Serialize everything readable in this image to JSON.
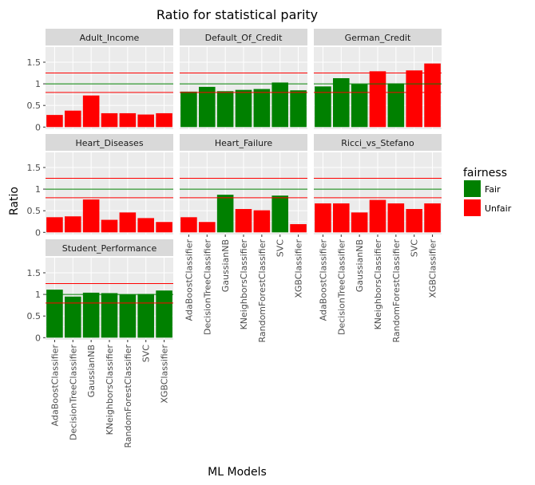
{
  "chart_data": {
    "type": "bar",
    "title": "Ratio for statistical parity",
    "xlabel": "ML Models",
    "ylabel": "Ratio",
    "ylim": [
      -0.05,
      1.85
    ],
    "yticks": [
      0,
      0.5,
      1,
      1.5
    ],
    "ytick_labels": [
      "0",
      "0.5",
      "1",
      "1.5"
    ],
    "grid": true,
    "facet_columns": 3,
    "reference_lines": [
      {
        "value": 1.0,
        "color": "#008000"
      },
      {
        "value": 0.8,
        "color": "#ff0000"
      },
      {
        "value": 1.25,
        "color": "#ff0000"
      }
    ],
    "categories": [
      "AdaBoostClassifier",
      "DecisionTreeClassifier",
      "GaussianNB",
      "KNeighborsClassifier",
      "RandomForestClassifier",
      "SVC",
      "XGBClassifier"
    ],
    "legend": {
      "title": "fairness",
      "position": "right",
      "entries": [
        {
          "label": "Fair",
          "color": "#008000"
        },
        {
          "label": "Unfair",
          "color": "#ff0000"
        }
      ]
    },
    "panels": [
      {
        "name": "Adult_Income",
        "values": [
          0.28,
          0.38,
          0.73,
          0.32,
          0.32,
          0.29,
          0.32
        ],
        "fairness": [
          "Unfair",
          "Unfair",
          "Unfair",
          "Unfair",
          "Unfair",
          "Unfair",
          "Unfair"
        ]
      },
      {
        "name": "Default_Of_Credit",
        "values": [
          0.82,
          0.93,
          0.83,
          0.86,
          0.88,
          1.03,
          0.85
        ],
        "fairness": [
          "Fair",
          "Fair",
          "Fair",
          "Fair",
          "Fair",
          "Fair",
          "Fair"
        ]
      },
      {
        "name": "German_Credit",
        "values": [
          0.94,
          1.13,
          0.99,
          1.29,
          1.01,
          1.31,
          1.47
        ],
        "fairness": [
          "Fair",
          "Fair",
          "Fair",
          "Unfair",
          "Fair",
          "Unfair",
          "Unfair"
        ]
      },
      {
        "name": "Heart_Diseases",
        "values": [
          0.35,
          0.37,
          0.76,
          0.29,
          0.46,
          0.33,
          0.24
        ],
        "fairness": [
          "Unfair",
          "Unfair",
          "Unfair",
          "Unfair",
          "Unfair",
          "Unfair",
          "Unfair"
        ]
      },
      {
        "name": "Heart_Failure",
        "values": [
          0.35,
          0.24,
          0.87,
          0.54,
          0.51,
          0.85,
          0.19
        ],
        "fairness": [
          "Unfair",
          "Unfair",
          "Fair",
          "Unfair",
          "Unfair",
          "Fair",
          "Unfair"
        ]
      },
      {
        "name": "Ricci_vs_Stefano",
        "values": [
          0.67,
          0.67,
          0.46,
          0.75,
          0.67,
          0.54,
          0.67
        ],
        "fairness": [
          "Unfair",
          "Unfair",
          "Unfair",
          "Unfair",
          "Unfair",
          "Unfair",
          "Unfair"
        ]
      },
      {
        "name": "Student_Performance",
        "values": [
          1.11,
          0.95,
          1.04,
          1.03,
          1.0,
          1.01,
          1.09
        ],
        "fairness": [
          "Fair",
          "Fair",
          "Fair",
          "Fair",
          "Fair",
          "Fair",
          "Fair"
        ]
      }
    ]
  }
}
